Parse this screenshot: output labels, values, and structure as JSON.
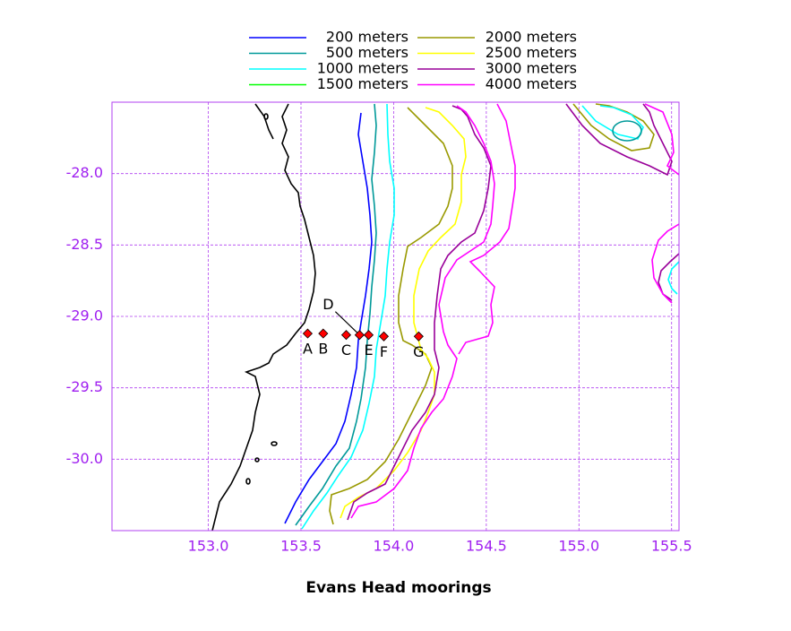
{
  "map": {
    "title": "Evans Head moorings",
    "xlim": [
      152.48,
      155.54
    ],
    "ylim": [
      -30.5,
      -27.5
    ],
    "xticks": [
      {
        "value": 153,
        "label": "153.0"
      },
      {
        "value": 153.5,
        "label": "153.5"
      },
      {
        "value": 154,
        "label": "154.0"
      },
      {
        "value": 154.5,
        "label": "154.5"
      },
      {
        "value": 155,
        "label": "155.0"
      },
      {
        "value": 155.5,
        "label": "155.5"
      }
    ],
    "yticks": [
      {
        "value": -28,
        "label": "-28.0"
      },
      {
        "value": -28.5,
        "label": "-28.5"
      },
      {
        "value": -29,
        "label": "-29.0"
      },
      {
        "value": -29.5,
        "label": "-29.5"
      },
      {
        "value": -30,
        "label": "-30.0"
      }
    ],
    "grid": true,
    "legend": [
      {
        "name": "200 meters",
        "color": "#0000ff"
      },
      {
        "name": "500 meters",
        "color": "#009999"
      },
      {
        "name": "1000 meters",
        "color": "#00ffff"
      },
      {
        "name": "1500 meters",
        "color": "#00ff00"
      },
      {
        "name": "2000 meters",
        "color": "#999900"
      },
      {
        "name": "2500 meters",
        "color": "#ffff00"
      },
      {
        "name": "3000 meters",
        "color": "#990099"
      },
      {
        "name": "4000 meters",
        "color": "#ff00ff"
      }
    ],
    "mooring_color": "#ff0000",
    "moorings": [
      {
        "label": "A",
        "lon": 153.536,
        "lat": -29.12
      },
      {
        "label": "B",
        "lon": 153.62,
        "lat": -29.12
      },
      {
        "label": "C",
        "lon": 153.744,
        "lat": -29.13
      },
      {
        "label": "D",
        "lon": 153.816,
        "lat": -29.13
      },
      {
        "label": "E",
        "lon": 153.865,
        "lat": -29.13
      },
      {
        "label": "F",
        "lon": 153.947,
        "lat": -29.14
      },
      {
        "label": "G",
        "lon": 154.135,
        "lat": -29.14
      }
    ]
  }
}
